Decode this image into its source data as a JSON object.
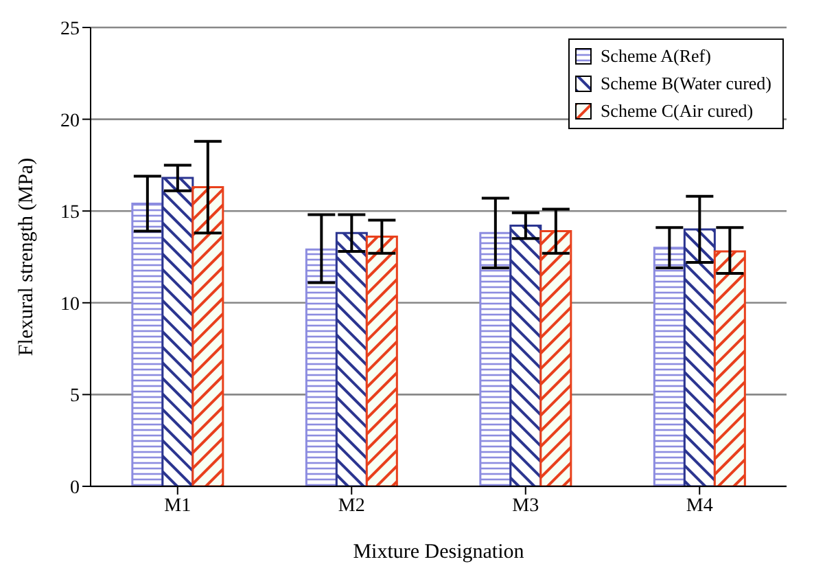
{
  "chart_data": {
    "type": "bar",
    "xlabel": "Mixture Designation",
    "ylabel": "Flexural strength (MPa)",
    "categories": [
      "M1",
      "M2",
      "M3",
      "M4"
    ],
    "series": [
      {
        "name": "Scheme A(Ref)",
        "color": "#8c8ce0",
        "values": [
          15.4,
          12.9,
          13.8,
          13.0
        ],
        "errors": [
          [
            13.9,
            16.9
          ],
          [
            11.1,
            14.8
          ],
          [
            11.9,
            15.7
          ],
          [
            11.9,
            14.1
          ]
        ]
      },
      {
        "name": "Scheme B(Water cured)",
        "color": "#2b3590",
        "values": [
          16.8,
          13.8,
          14.2,
          14.0
        ],
        "errors": [
          [
            16.1,
            17.5
          ],
          [
            12.8,
            14.8
          ],
          [
            13.5,
            14.9
          ],
          [
            12.2,
            15.8
          ]
        ]
      },
      {
        "name": "Scheme C(Air cured)",
        "color": "#e8401c",
        "values": [
          16.3,
          13.6,
          13.9,
          12.8
        ],
        "errors": [
          [
            13.8,
            18.8
          ],
          [
            12.7,
            14.5
          ],
          [
            12.7,
            15.1
          ],
          [
            11.6,
            14.1
          ]
        ]
      }
    ],
    "ylim": [
      0,
      25
    ],
    "yticks": [
      0,
      5,
      10,
      15,
      20,
      25
    ],
    "grid": "y",
    "legend": "top right"
  }
}
